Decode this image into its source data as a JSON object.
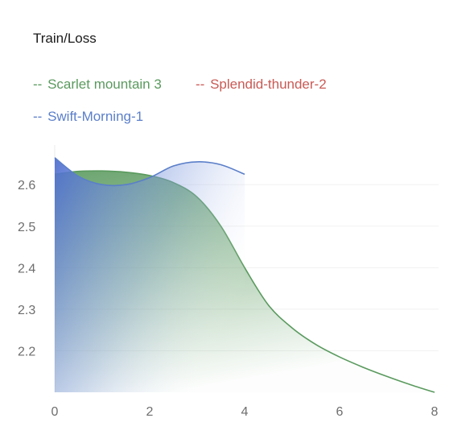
{
  "title": "Train/Loss",
  "chart_data": {
    "type": "area",
    "title": "Train/Loss",
    "xlabel": "",
    "ylabel": "",
    "xlim": [
      0,
      8
    ],
    "ylim": [
      2.1,
      2.68
    ],
    "x_ticks": [
      0,
      2,
      4,
      6,
      8
    ],
    "y_ticks": [
      2.2,
      2.3,
      2.4,
      2.5,
      2.6
    ],
    "grid": true,
    "legend_position": "top-left",
    "series": [
      {
        "name": "Scarlet mountain 3",
        "color": "#5a9a5e",
        "x": [
          0,
          0.5,
          1,
          1.5,
          2,
          2.5,
          3,
          3.5,
          4,
          4.5,
          5,
          5.5,
          6,
          6.5,
          7,
          7.5,
          8
        ],
        "y": [
          2.625,
          2.632,
          2.633,
          2.63,
          2.622,
          2.605,
          2.57,
          2.5,
          2.4,
          2.31,
          2.255,
          2.215,
          2.185,
          2.16,
          2.138,
          2.118,
          2.1
        ]
      },
      {
        "name": "Splendid-thunder-2",
        "color": "#c95a55",
        "x": [],
        "y": []
      },
      {
        "name": "Swift-Morning-1",
        "color": "#5b7fc9",
        "x": [
          0,
          0.5,
          1,
          1.5,
          2,
          2.5,
          3,
          3.5,
          4
        ],
        "y": [
          2.665,
          2.62,
          2.6,
          2.6,
          2.617,
          2.645,
          2.655,
          2.648,
          2.625
        ]
      }
    ]
  }
}
